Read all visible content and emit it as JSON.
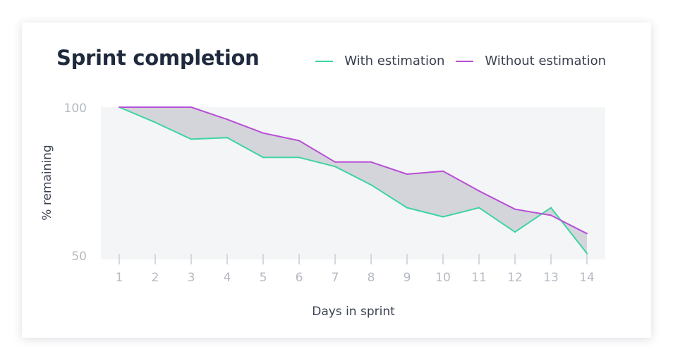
{
  "chart_data": {
    "type": "line",
    "title": "Sprint completion",
    "xlabel": "Days in sprint",
    "ylabel": "% remaining",
    "x": [
      1,
      2,
      3,
      4,
      5,
      6,
      7,
      8,
      9,
      10,
      11,
      12,
      13,
      14
    ],
    "ylim": [
      50,
      100
    ],
    "yticks": [
      "100",
      "50"
    ],
    "legend_position": "top-right",
    "fill_between_series": true,
    "series": [
      {
        "name": "With estimation",
        "color": "#3ed3a3",
        "values": [
          100,
          95,
          89.5,
          90,
          83.5,
          83.5,
          80.5,
          74.5,
          67,
          64,
          67,
          59,
          67,
          52
        ]
      },
      {
        "name": "Without estimation",
        "color": "#b74fd6",
        "values": [
          100,
          100,
          100,
          96,
          91.5,
          89,
          82,
          82,
          78,
          79,
          72.5,
          66.5,
          64.5,
          58.5
        ]
      }
    ],
    "colors": {
      "plot_background": "#f4f5f7",
      "fill_between": "#d3d5da",
      "tick_mark": "#d5d8dd",
      "tick_label": "#b5b9c2"
    }
  }
}
